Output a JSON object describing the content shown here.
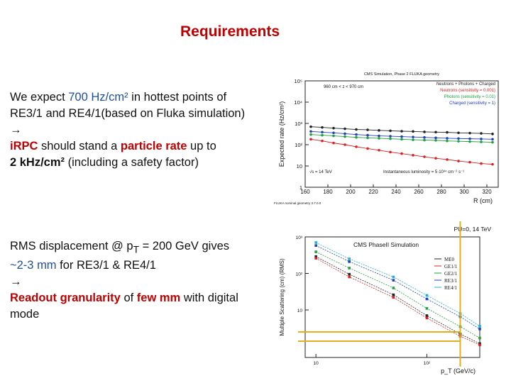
{
  "slide": {
    "title": "Requirements"
  },
  "block1": {
    "l1_a": "We expect ",
    "l1_b": "700 Hz/cm²",
    "l1_c": " in hottest points of",
    "l2": "RE3/1 and RE4/1(based on Fluka simulation)",
    "arrow": "→",
    "l4_a": "iRPC",
    "l4_b": " should stand a ",
    "l4_c": "particle rate",
    "l4_d": " up to",
    "l5_a": "2 kHz/cm²",
    "l5_b": " (including a safety factor)"
  },
  "block2": {
    "l1_a": "RMS displacement @ p",
    "l1_sub": "T",
    "l1_b": " = 200 GeV gives",
    "l2_a": "~2-3 mm",
    "l2_b": " for RE3/1 & RE4/1",
    "arrow": "→",
    "l4_a": "Readout granularity",
    "l4_b": " of ",
    "l4_c": "few mm",
    "l4_d": " with digital",
    "l5": "mode"
  },
  "chart_data": [
    {
      "type": "line",
      "title": "CMS Simulation, Phase 2 FLUKA geometry",
      "ylabel": "Expected rate (Hz/cm²)",
      "xlabel": "R (cm)",
      "xlim": [
        160,
        330
      ],
      "ylog": true,
      "ylim": [
        1,
        100000
      ],
      "x_ticks": [
        "160",
        "180",
        "200",
        "220",
        "240",
        "260",
        "280",
        "300",
        "320"
      ],
      "y_ticks": [
        "1",
        "10",
        "10²",
        "10³",
        "10⁴",
        "10⁵"
      ],
      "annotations": [
        "960 cm < z < 970 cm",
        "√s = 14 TeV",
        "Instantaneous luminosity = 5·10³⁴ cm⁻² s⁻¹",
        "FLUKA nominal geometry 3.7.0.0"
      ],
      "legend_position": "top-right",
      "colors": {
        "total": "#222222",
        "neutrons": "#e02020",
        "photons": "#20a040",
        "charged": "#2040c0"
      },
      "x": [
        165,
        175,
        185,
        195,
        205,
        215,
        225,
        235,
        245,
        255,
        265,
        275,
        285,
        295,
        305,
        315,
        325
      ],
      "series": [
        {
          "name": "Neutrons + Photons + Charged",
          "color": "#222222",
          "values": [
            700,
            650,
            600,
            560,
            520,
            500,
            470,
            450,
            430,
            420,
            400,
            390,
            380,
            360,
            350,
            340,
            320
          ]
        },
        {
          "name": "Neutrons (sensitivity = 0.001)",
          "color": "#e02020",
          "values": [
            180,
            150,
            120,
            100,
            80,
            66,
            55,
            45,
            38,
            32,
            27,
            23,
            20,
            17,
            15,
            13,
            12
          ]
        },
        {
          "name": "Photons (sensitivity = 0.01)",
          "color": "#20a040",
          "values": [
            300,
            280,
            260,
            240,
            220,
            210,
            200,
            190,
            180,
            170,
            165,
            160,
            150,
            145,
            140,
            135,
            130
          ]
        },
        {
          "name": "Charged (sensitivity = 1)",
          "color": "#2040c0",
          "values": [
            420,
            390,
            360,
            330,
            300,
            280,
            260,
            250,
            240,
            230,
            220,
            210,
            200,
            195,
            190,
            185,
            180
          ]
        }
      ]
    },
    {
      "type": "line",
      "title": "CMS PhaseII Simulation",
      "header_right": "PU=0, 14 TeV",
      "ylabel": "Multiple Scattering (cm) (RMS)",
      "xlabel": "p_T (GeV/c)",
      "xlog": true,
      "ylog": true,
      "xlim": [
        8,
        300
      ],
      "ylim": [
        0.5,
        1000
      ],
      "x_ticks": [
        "10",
        "10²"
      ],
      "y_ticks": [
        "10",
        "10²",
        "10³"
      ],
      "legend_position": "top-right",
      "x": [
        10,
        20,
        50,
        100,
        200,
        300
      ],
      "series": [
        {
          "name": "ME0",
          "color": "#222222",
          "values": [
            290,
            95,
            26,
            7,
            2.2,
            1.2
          ]
        },
        {
          "name": "GE1/1",
          "color": "#e02020",
          "values": [
            260,
            80,
            22,
            6,
            1.9,
            1.1
          ]
        },
        {
          "name": "GE2/1",
          "color": "#20a040",
          "values": [
            390,
            140,
            40,
            11,
            3.5,
            1.7
          ]
        },
        {
          "name": "RE3/1",
          "color": "#2040c0",
          "values": [
            580,
            210,
            65,
            20,
            6.5,
            3
          ]
        },
        {
          "name": "RE4/1",
          "color": "#20b0d0",
          "values": [
            700,
            250,
            80,
            25,
            8,
            3.6
          ]
        }
      ],
      "highlight_x": 200,
      "highlight_y": [
        2.5,
        1.4
      ]
    }
  ]
}
